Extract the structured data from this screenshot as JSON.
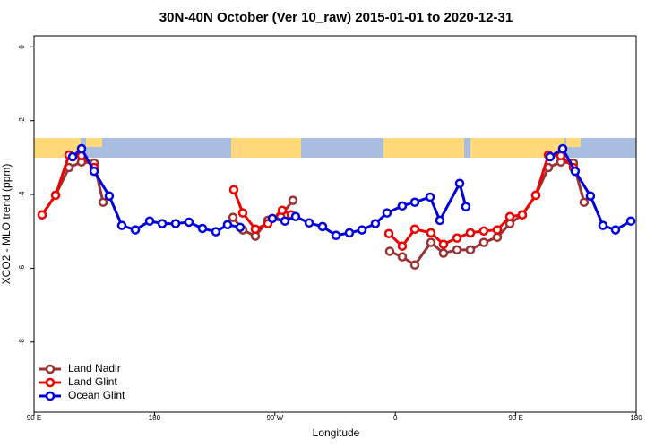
{
  "chart_data": {
    "type": "line",
    "title": "30N-40N October (Ver 10_raw)   2015-01-01 to 2020-12-31",
    "x_label": "Longitude",
    "y_label": "XCO2 - MLO trend (ppm)",
    "xlim": [
      90,
      540
    ],
    "ylim": [
      -9.9,
      0.3
    ],
    "xticks": [
      {
        "value": 90,
        "label": "90 E"
      },
      {
        "value": 180,
        "label": "180"
      },
      {
        "value": 270,
        "label": "90 W"
      },
      {
        "value": 360,
        "label": "0"
      },
      {
        "value": 450,
        "label": "90 E"
      },
      {
        "value": 540,
        "label": "180"
      }
    ],
    "yticks": [
      0,
      -2,
      -4,
      -6,
      -8
    ],
    "legend": "bottomleft",
    "series": [
      {
        "name": "Land Nadir",
        "color": "#993333",
        "x": [
          96.0,
          106.1,
          116.1,
          125.5,
          134.9,
          141.6,
          null,
          238.7,
          246.0,
          255.4,
          264.8,
          274.2,
          283.5,
          null,
          355.8,
          365.2,
          374.6,
          386.6,
          396.0,
          406.1,
          416.1,
          426.1,
          436.2,
          445.6,
          454.9,
          465.0,
          474.4,
          483.7,
          493.1,
          501.1
        ],
        "values": [
          -4.55,
          -4.02,
          -3.27,
          -3.12,
          -3.15,
          -4.21,
          null,
          -4.62,
          -4.96,
          -5.13,
          -4.7,
          -4.58,
          -4.16,
          null,
          -5.54,
          -5.69,
          -5.91,
          -5.3,
          -5.59,
          -5.5,
          -5.5,
          -5.3,
          -5.16,
          -4.79,
          -4.55,
          -4.02,
          -3.27,
          -3.12,
          -3.15,
          -4.21
        ]
      },
      {
        "name": "Land Glint",
        "color": "#ee0000",
        "x": [
          96.0,
          106.1,
          116.1,
          125.5,
          134.9,
          null,
          239.3,
          246.0,
          255.4,
          264.8,
          275.5,
          282.2,
          null,
          355.2,
          365.2,
          374.6,
          386.6,
          396.0,
          406.1,
          416.1,
          426.1,
          436.2,
          445.6,
          454.9,
          465.0,
          474.4,
          483.7,
          493.1
        ],
        "values": [
          -4.55,
          -4.02,
          -2.93,
          -2.95,
          -3.27,
          null,
          -3.87,
          -4.5,
          -4.94,
          -4.79,
          -4.43,
          -4.55,
          null,
          -5.06,
          -5.4,
          -4.94,
          -5.04,
          -5.35,
          -5.18,
          -5.04,
          -4.99,
          -4.96,
          -4.6,
          -4.55,
          -4.02,
          -2.93,
          -2.95,
          -3.27
        ]
      },
      {
        "name": "Ocean Glint",
        "color": "#0000dd",
        "x": [
          118.8,
          125.5,
          134.9,
          146.2,
          155.6,
          165.7,
          176.4,
          185.8,
          195.8,
          205.8,
          215.9,
          225.9,
          234.6,
          244.0,
          null,
          268.1,
          277.5,
          285.5,
          295.6,
          305.6,
          315.7,
          325.7,
          335.1,
          345.1,
          353.8,
          365.2,
          374.6,
          386.0,
          393.3,
          408.1,
          412.7,
          null,
          475.7,
          485.1,
          494.4,
          505.8,
          515.2,
          524.6,
          536.0
        ],
        "values": [
          -2.98,
          -2.76,
          -3.37,
          -4.04,
          -4.84,
          -4.96,
          -4.72,
          -4.79,
          -4.79,
          -4.75,
          -4.92,
          -5.01,
          -4.82,
          -4.89,
          null,
          -4.65,
          -4.72,
          -4.6,
          -4.77,
          -4.87,
          -5.11,
          -5.04,
          -4.96,
          -4.79,
          -4.5,
          -4.31,
          -4.21,
          -4.07,
          -4.7,
          -3.7,
          -4.33,
          null,
          -2.98,
          -2.76,
          -3.37,
          -4.04,
          -4.84,
          -4.96,
          -4.72
        ]
      }
    ]
  }
}
